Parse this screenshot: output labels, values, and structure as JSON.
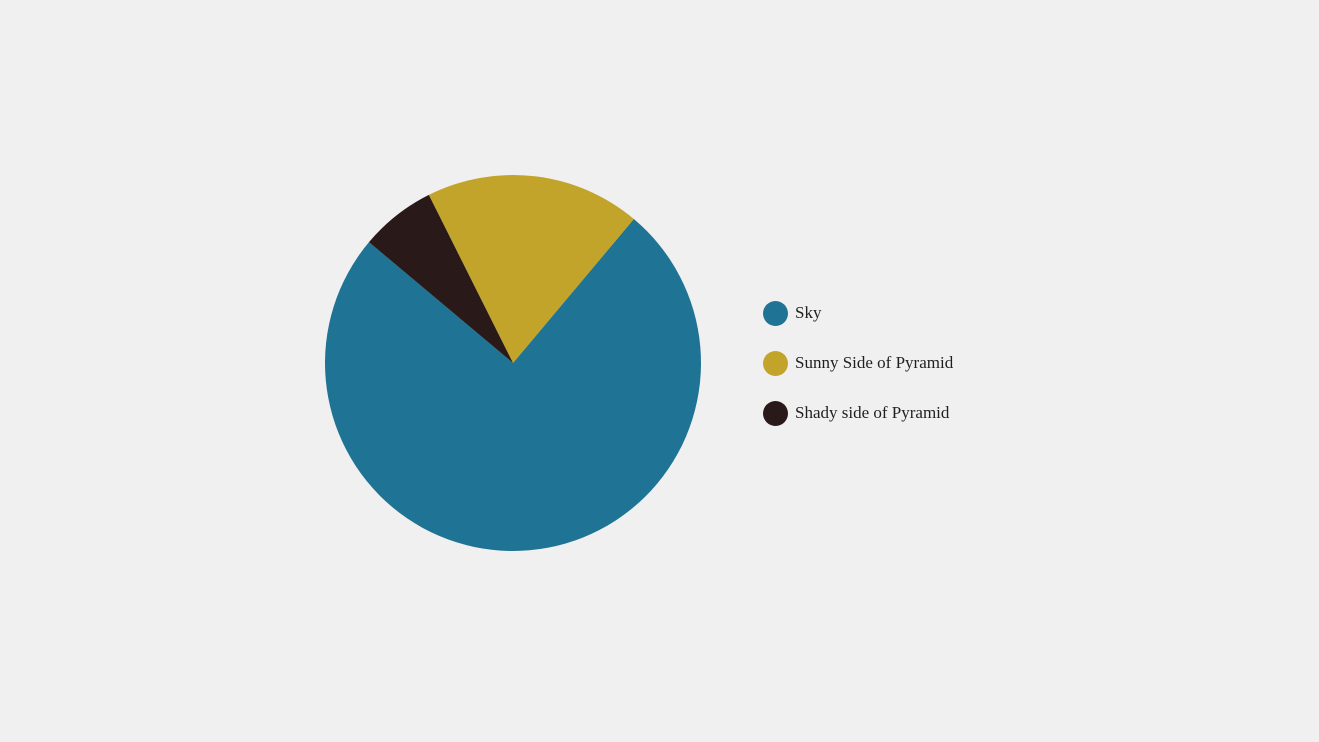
{
  "chart_data": {
    "type": "pie",
    "start_angle_deg": 140,
    "direction": "counterclockwise",
    "series": [
      {
        "name": "Sky",
        "value": 0.75,
        "color": "#1f7394"
      },
      {
        "name": "Sunny Side of Pyramid",
        "value": 0.185,
        "color": "#c2a42a"
      },
      {
        "name": "Shady side of Pyramid",
        "value": 0.065,
        "color": "#291a19"
      }
    ],
    "legend_position": "right"
  }
}
